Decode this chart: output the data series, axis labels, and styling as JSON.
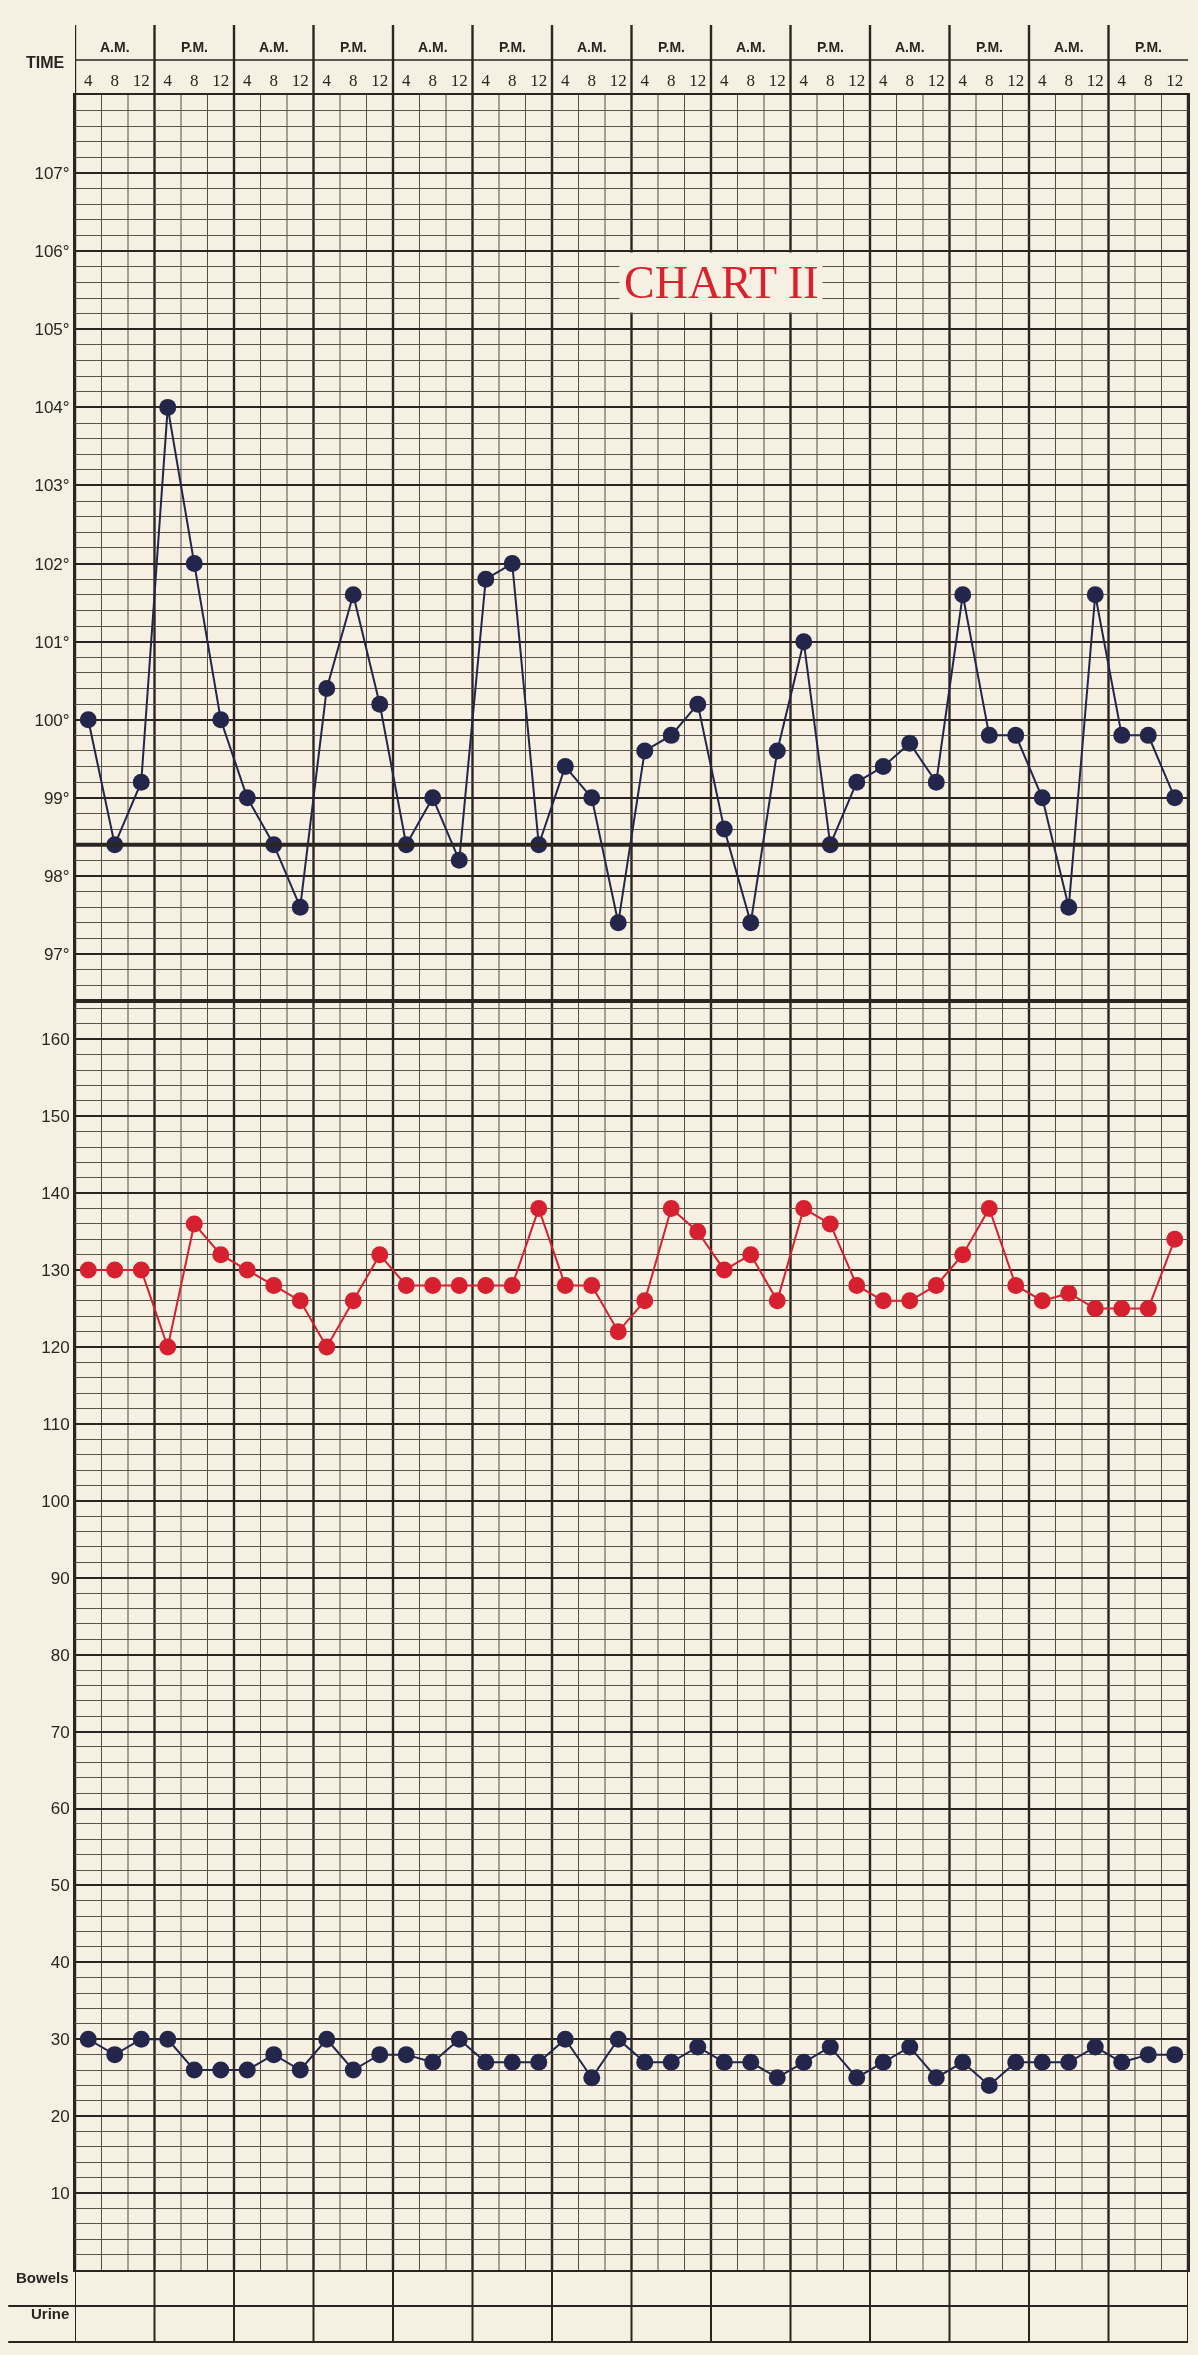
{
  "chart_data": [
    {
      "type": "line",
      "title": "CHART II",
      "xlabel": "TIME",
      "annotations": [
        "A.M.",
        "P.M.",
        "A.M.",
        "P.M.",
        "A.M.",
        "P.M.",
        "A.M.",
        "P.M.",
        "A.M.",
        "P.M.",
        "A.M.",
        "P.M.",
        "A.M.",
        "P.M."
      ],
      "categories": [
        "4",
        "8",
        "12",
        "4",
        "8",
        "12",
        "4",
        "8",
        "12",
        "4",
        "8",
        "12",
        "4",
        "8",
        "12",
        "4",
        "8",
        "12",
        "4",
        "8",
        "12",
        "4",
        "8",
        "12",
        "4",
        "8",
        "12",
        "4",
        "8",
        "12",
        "4",
        "8",
        "12",
        "4",
        "8",
        "12",
        "4",
        "8",
        "12",
        "4",
        "8",
        "12"
      ],
      "series": [
        {
          "color": "#23264a",
          "values": [
            100.0,
            98.4,
            99.2,
            104.0,
            102.0,
            100.0,
            99.0,
            98.4,
            97.6,
            100.4,
            101.6,
            100.2,
            98.4,
            99.0,
            98.2,
            101.8,
            102.0,
            98.4,
            99.4,
            99.0,
            97.4,
            99.6,
            99.8,
            100.2,
            98.6,
            97.4,
            99.6,
            101.0,
            98.4,
            99.2,
            99.4,
            99.7,
            99.2,
            101.6,
            99.8,
            99.8,
            99.0,
            97.6,
            101.6,
            99.8,
            99.8,
            99.0
          ]
        }
      ],
      "ylim": [
        96.4,
        108
      ],
      "yticks": [
        {
          "value": 97,
          "label": "97°"
        },
        {
          "value": 98,
          "label": "98°"
        },
        {
          "value": 99,
          "label": "99°"
        },
        {
          "value": 100,
          "label": "100°"
        },
        {
          "value": 101,
          "label": "101°"
        },
        {
          "value": 102,
          "label": "102°"
        },
        {
          "value": 103,
          "label": "103°"
        },
        {
          "value": 104,
          "label": "104°"
        },
        {
          "value": 105,
          "label": "105°"
        },
        {
          "value": 106,
          "label": "106°"
        },
        {
          "value": 107,
          "label": "107°"
        }
      ],
      "ref_lines": [
        {
          "axis": "y",
          "value": 98.4,
          "color": "#2a2520"
        }
      ],
      "grid": true,
      "marker": "circle",
      "line_style": "solid"
    },
    {
      "type": "line",
      "annotations": [
        "Bowels",
        "Urine"
      ],
      "categories": [
        "4",
        "8",
        "12",
        "4",
        "8",
        "12",
        "4",
        "8",
        "12",
        "4",
        "8",
        "12",
        "4",
        "8",
        "12",
        "4",
        "8",
        "12",
        "4",
        "8",
        "12",
        "4",
        "8",
        "12",
        "4",
        "8",
        "12",
        "4",
        "8",
        "12",
        "4",
        "8",
        "12",
        "4",
        "8",
        "12",
        "4",
        "8",
        "12",
        "4",
        "8",
        "12"
      ],
      "series": [
        {
          "color": "#d62030",
          "values": [
            130,
            130,
            130,
            120,
            136,
            132,
            130,
            128,
            126,
            120,
            126,
            132,
            128,
            128,
            128,
            128,
            128,
            138,
            128,
            128,
            122,
            126,
            138,
            135,
            130,
            132,
            126,
            138,
            136,
            128,
            126,
            126,
            128,
            132,
            138,
            128,
            126,
            127,
            125,
            125,
            125,
            134
          ]
        },
        {
          "color": "#23264a",
          "values": [
            30,
            28,
            30,
            30,
            26,
            26,
            26,
            28,
            26,
            30,
            26,
            28,
            28,
            27,
            30,
            27,
            27,
            27,
            30,
            25,
            30,
            27,
            27,
            29,
            27,
            27,
            25,
            27,
            29,
            25,
            27,
            29,
            25,
            27,
            24,
            27,
            27,
            27,
            29,
            27,
            28,
            28
          ]
        }
      ],
      "ylim": [
        0,
        165
      ],
      "yticks": [
        10,
        20,
        30,
        40,
        50,
        60,
        70,
        80,
        90,
        100,
        110,
        120,
        130,
        140,
        150,
        160
      ],
      "tick_labels": "y",
      "grid": true,
      "marker": "circle",
      "line_style": "solid"
    }
  ]
}
